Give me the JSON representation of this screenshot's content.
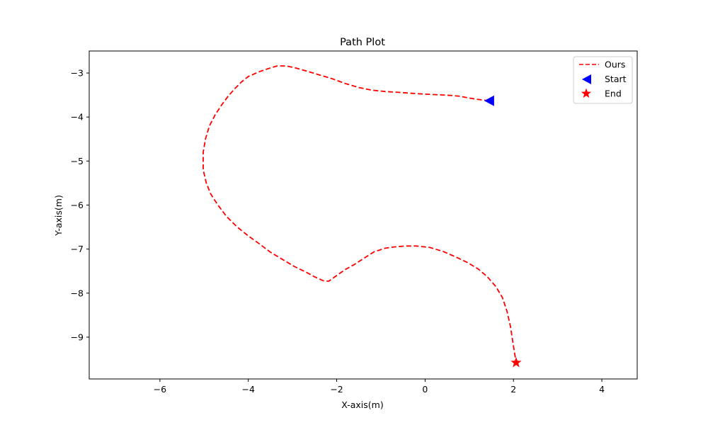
{
  "chart_data": {
    "type": "line",
    "title": "Path Plot",
    "xlabel": "X-axis(m)",
    "ylabel": "Y-axis(m)",
    "xlim": [
      -7.6,
      4.8
    ],
    "ylim": [
      -9.95,
      -2.5
    ],
    "x_ticks": [
      -6,
      -4,
      -2,
      0,
      2,
      4
    ],
    "y_ticks": [
      -3,
      -4,
      -5,
      -6,
      -7,
      -8,
      -9
    ],
    "x_tick_labels": [
      "−6",
      "−4",
      "−2",
      "0",
      "2",
      "4"
    ],
    "y_tick_labels": [
      "−3",
      "−4",
      "−5",
      "−6",
      "−7",
      "−8",
      "−9"
    ],
    "grid": false,
    "legend_position": "top-right",
    "legend": [
      {
        "label": "Ours",
        "marker": "dashed-line",
        "color": "#ff0000"
      },
      {
        "label": "Start",
        "marker": "left-triangle",
        "color": "#0000ff"
      },
      {
        "label": "End",
        "marker": "star",
        "color": "#ff0000"
      }
    ],
    "series": [
      {
        "name": "Ours",
        "color": "#ff0000",
        "line_style": "dashed",
        "x": [
          1.45,
          1.2,
          0.95,
          0.8,
          0.6,
          0.4,
          0.2,
          0.0,
          -0.3,
          -0.6,
          -0.9,
          -1.2,
          -1.5,
          -1.8,
          -2.1,
          -2.4,
          -2.7,
          -2.95,
          -3.15,
          -3.35,
          -3.55,
          -3.75,
          -4.0,
          -4.15,
          -4.3,
          -4.45,
          -4.6,
          -4.75,
          -4.88,
          -4.97,
          -5.02,
          -5.02,
          -4.95,
          -4.85,
          -4.7,
          -4.5,
          -4.25,
          -4.0,
          -3.75,
          -3.5,
          -3.2,
          -2.95,
          -2.7,
          -2.5,
          -2.3,
          -2.18,
          -2.0,
          -1.8,
          -1.6,
          -1.4,
          -1.15,
          -0.9,
          -0.7,
          -0.45,
          -0.2,
          0.1,
          0.4,
          0.7,
          0.95,
          1.2,
          1.4,
          1.6,
          1.75,
          1.85,
          1.93,
          2.0,
          2.06
        ],
        "y": [
          -3.63,
          -3.6,
          -3.56,
          -3.53,
          -3.51,
          -3.5,
          -3.49,
          -3.48,
          -3.46,
          -3.44,
          -3.42,
          -3.39,
          -3.33,
          -3.24,
          -3.13,
          -3.04,
          -2.95,
          -2.88,
          -2.84,
          -2.84,
          -2.9,
          -2.97,
          -3.08,
          -3.2,
          -3.35,
          -3.52,
          -3.72,
          -3.95,
          -4.2,
          -4.5,
          -4.8,
          -5.2,
          -5.5,
          -5.75,
          -5.98,
          -6.25,
          -6.5,
          -6.7,
          -6.88,
          -7.07,
          -7.25,
          -7.4,
          -7.52,
          -7.63,
          -7.72,
          -7.73,
          -7.6,
          -7.46,
          -7.35,
          -7.22,
          -7.06,
          -6.98,
          -6.95,
          -6.93,
          -6.93,
          -6.96,
          -7.05,
          -7.18,
          -7.3,
          -7.45,
          -7.62,
          -7.85,
          -8.1,
          -8.4,
          -8.75,
          -9.2,
          -9.58
        ]
      }
    ],
    "markers": [
      {
        "name": "Start",
        "shape": "left-triangle",
        "color": "#0000ff",
        "x": 1.45,
        "y": -3.63
      },
      {
        "name": "End",
        "shape": "star",
        "color": "#ff0000",
        "x": 2.06,
        "y": -9.58
      }
    ]
  }
}
